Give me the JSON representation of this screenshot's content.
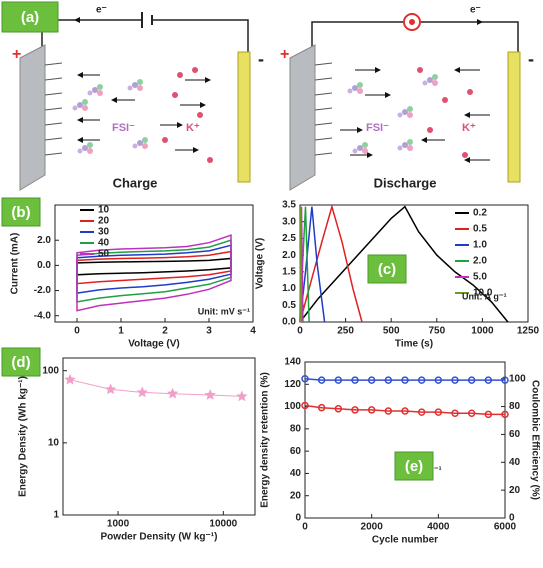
{
  "diagram": {
    "label": "(a)",
    "charge": {
      "electron": "e⁻",
      "plus": "+",
      "minus": "-",
      "anion": "FSI⁻",
      "cation": "K⁺",
      "caption": "Charge"
    },
    "discharge": {
      "electron": "e⁻",
      "plus": "+",
      "minus": "-",
      "anion": "FSI⁻",
      "cation": "K⁺",
      "caption": "Discharge"
    }
  },
  "chart_data": [
    {
      "type": "line",
      "label": "(b)",
      "x_label": "Voltage (V)",
      "y_label": "Current (mA)",
      "annotation": "Unit: mV s⁻¹",
      "x": [
        0,
        0.5,
        1,
        1.5,
        2,
        2.5,
        3,
        3.5,
        3.5,
        3,
        2.5,
        2,
        1.5,
        1,
        0.5,
        0
      ],
      "series": [
        {
          "name": "10",
          "color": "#000000",
          "values": [
            0.2,
            0.25,
            0.28,
            0.3,
            0.32,
            0.35,
            0.4,
            0.55,
            -0.2,
            -0.35,
            -0.45,
            -0.52,
            -0.58,
            -0.62,
            -0.66,
            -0.75
          ]
        },
        {
          "name": "20",
          "color": "#e02020",
          "values": [
            0.4,
            0.5,
            0.55,
            0.58,
            0.62,
            0.68,
            0.8,
            1.1,
            -0.45,
            -0.75,
            -0.9,
            -1.0,
            -1.1,
            -1.2,
            -1.3,
            -1.45
          ]
        },
        {
          "name": "30",
          "color": "#1e3cc8",
          "values": [
            0.6,
            0.72,
            0.8,
            0.85,
            0.9,
            1.0,
            1.15,
            1.6,
            -0.7,
            -1.1,
            -1.35,
            -1.55,
            -1.7,
            -1.8,
            -1.95,
            -2.2
          ]
        },
        {
          "name": "40",
          "color": "#20a040",
          "values": [
            0.8,
            0.95,
            1.05,
            1.1,
            1.15,
            1.25,
            1.45,
            2.0,
            -0.95,
            -1.5,
            -1.8,
            -2.1,
            -2.25,
            -2.4,
            -2.6,
            -2.9
          ]
        },
        {
          "name": "50",
          "color": "#c030c0",
          "values": [
            1.0,
            1.2,
            1.3,
            1.35,
            1.4,
            1.5,
            1.8,
            2.4,
            -1.2,
            -1.9,
            -2.3,
            -2.6,
            -2.8,
            -3.0,
            -3.2,
            -3.6
          ]
        }
      ],
      "xlim": [
        -0.5,
        4
      ],
      "xticks": [
        0,
        1,
        2,
        3,
        4
      ],
      "ylim": [
        -4.5,
        4.8
      ],
      "yticks": [
        {
          "value": -4,
          "label": "-4.0"
        },
        {
          "value": -2,
          "label": "-2.0"
        },
        {
          "value": 0,
          "label": "0.0"
        },
        {
          "value": 2,
          "label": "2.0"
        }
      ]
    },
    {
      "type": "line",
      "label": "(c)",
      "x_label": "Time (s)",
      "y_label": "Voltage (V)",
      "annotation": "Unit: A g⁻¹",
      "series": [
        {
          "name": "0.2",
          "color": "#000000",
          "x": [
            0,
            100,
            200,
            300,
            400,
            500,
            575,
            650,
            750,
            850,
            950,
            1050,
            1140
          ],
          "values": [
            0,
            0.7,
            1.3,
            1.9,
            2.5,
            3.1,
            3.45,
            2.7,
            2.0,
            1.5,
            1.1,
            0.6,
            0
          ]
        },
        {
          "name": "0.5",
          "color": "#e02020",
          "x": [
            0,
            60,
            120,
            175,
            230,
            290,
            340
          ],
          "values": [
            0,
            1.2,
            2.4,
            3.45,
            2.4,
            1.0,
            0
          ]
        },
        {
          "name": "1.0",
          "color": "#1e3cc8",
          "x": [
            0,
            30,
            65,
            95,
            135
          ],
          "values": [
            0,
            1.5,
            3.45,
            1.7,
            0
          ]
        },
        {
          "name": "2.0",
          "color": "#20a040",
          "x": [
            0,
            15,
            30,
            50
          ],
          "values": [
            0,
            1.8,
            3.45,
            0
          ]
        },
        {
          "name": "5.0",
          "color": "#c030c0",
          "x": [
            0,
            8,
            16
          ],
          "values": [
            0,
            3.45,
            0
          ]
        },
        {
          "name": "10.0",
          "color": "#6a9a20",
          "x": [
            0,
            4,
            8
          ],
          "values": [
            0,
            3.45,
            0
          ]
        }
      ],
      "xlim": [
        0,
        1250
      ],
      "xticks": [
        0,
        250,
        500,
        750,
        1000,
        1250
      ],
      "ylim": [
        0,
        3.5
      ],
      "yticks": [
        {
          "value": 0,
          "label": "0.0"
        },
        {
          "value": 0.5,
          "label": "0.5"
        },
        {
          "value": 1,
          "label": "1.0"
        },
        {
          "value": 1.5,
          "label": "1.5"
        },
        {
          "value": 2,
          "label": "2.0"
        },
        {
          "value": 2.5,
          "label": "2.5"
        },
        {
          "value": 3,
          "label": "3.0"
        },
        {
          "value": 3.5,
          "label": "3.5"
        }
      ]
    },
    {
      "type": "scatter",
      "label": "(d)",
      "x_label": "Powder Density (W kg⁻¹)",
      "y_label": "Energy Density (Wh kg⁻¹)",
      "marker": "star",
      "series": [
        {
          "color": "#f0a0c8",
          "x": [
            350,
            850,
            1700,
            3300,
            7500,
            15000
          ],
          "values": [
            75,
            55,
            50,
            48,
            46,
            44
          ]
        }
      ],
      "xscale": "log",
      "yscale": "log",
      "xlim": [
        300,
        20000
      ],
      "xticks": [
        1000,
        10000
      ],
      "ylim": [
        1,
        150
      ],
      "yticks": [
        1,
        10,
        100
      ]
    },
    {
      "type": "line",
      "label": "(e)",
      "x_label": "Cycle number",
      "y_label": "Energy density retention (%)",
      "y2_label": "Coulombic Efficiency (%)",
      "annotation": "2.0 A g⁻¹",
      "marker": "circle",
      "x": [
        0,
        500,
        1000,
        1500,
        2000,
        2500,
        3000,
        3500,
        4000,
        4500,
        5000,
        5500,
        6000
      ],
      "series": [
        {
          "color": "#e03030",
          "values": [
            101,
            99,
            98,
            97,
            97,
            96,
            96,
            95,
            95,
            94,
            94,
            93,
            93
          ]
        },
        {
          "color": "#3050d0",
          "axis": "y2",
          "values": [
            100,
            99,
            99,
            99,
            99,
            99,
            99,
            99,
            99,
            99,
            99,
            99,
            99
          ]
        }
      ],
      "xlim": [
        0,
        6000
      ],
      "xticks": [
        0,
        2000,
        4000,
        6000
      ],
      "ylim": [
        0,
        140
      ],
      "yticks": [
        0,
        20,
        40,
        60,
        80,
        100,
        120,
        140
      ],
      "y2lim": [
        0,
        112
      ],
      "y2ticks": [
        0,
        20,
        40,
        60,
        80,
        100
      ]
    }
  ]
}
